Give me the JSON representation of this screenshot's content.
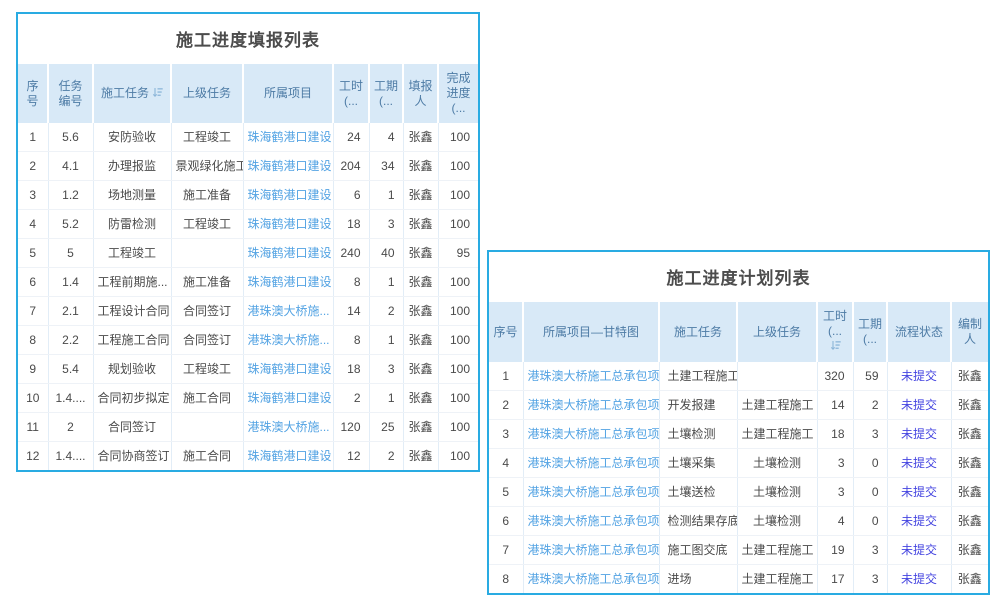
{
  "colors": {
    "accent_border": "#29abe2",
    "header_bg": "#d8e9f7",
    "header_text": "#4d7ba5",
    "project_link": "#53a3e3",
    "status_link": "#4444e0",
    "body_text": "#4a4a4a"
  },
  "report_table": {
    "title": "施工进度填报列表",
    "headers": {
      "seq": "序号",
      "task_no": "任务\n编号",
      "task": "施工任务",
      "parent_task": "上级任务",
      "project": "所属项目",
      "hours": "工时\n(...",
      "duration": "工期\n(...",
      "reporter": "填报\n人",
      "progress": "完成\n进度\n(..."
    },
    "rows": [
      [
        "1",
        "5.6",
        "安防验收",
        "工程竣工",
        "珠海鹤港口建设",
        "24",
        "4",
        "张鑫",
        "100"
      ],
      [
        "2",
        "4.1",
        "办理报监",
        "景观绿化施工",
        "珠海鹤港口建设",
        "204",
        "34",
        "张鑫",
        "100"
      ],
      [
        "3",
        "1.2",
        "场地测量",
        "施工准备",
        "珠海鹤港口建设",
        "6",
        "1",
        "张鑫",
        "100"
      ],
      [
        "4",
        "5.2",
        "防雷检测",
        "工程竣工",
        "珠海鹤港口建设",
        "18",
        "3",
        "张鑫",
        "100"
      ],
      [
        "5",
        "5",
        "工程竣工",
        "",
        "珠海鹤港口建设",
        "240",
        "40",
        "张鑫",
        "95"
      ],
      [
        "6",
        "1.4",
        "工程前期施...",
        "施工准备",
        "珠海鹤港口建设",
        "8",
        "1",
        "张鑫",
        "100"
      ],
      [
        "7",
        "2.1",
        "工程设计合同",
        "合同签订",
        "港珠澳大桥施...",
        "14",
        "2",
        "张鑫",
        "100"
      ],
      [
        "8",
        "2.2",
        "工程施工合同",
        "合同签订",
        "港珠澳大桥施...",
        "8",
        "1",
        "张鑫",
        "100"
      ],
      [
        "9",
        "5.4",
        "规划验收",
        "工程竣工",
        "珠海鹤港口建设",
        "18",
        "3",
        "张鑫",
        "100"
      ],
      [
        "10",
        "1.4....",
        "合同初步拟定",
        "施工合同",
        "珠海鹤港口建设",
        "2",
        "1",
        "张鑫",
        "100"
      ],
      [
        "11",
        "2",
        "合同签订",
        "",
        "港珠澳大桥施...",
        "120",
        "25",
        "张鑫",
        "100"
      ],
      [
        "12",
        "1.4....",
        "合同协商签订",
        "施工合同",
        "珠海鹤港口建设",
        "12",
        "2",
        "张鑫",
        "100"
      ]
    ]
  },
  "plan_table": {
    "title": "施工进度计划列表",
    "headers": {
      "seq": "序号",
      "project_gantt": "所属项目—甘特图",
      "task": "施工任务",
      "parent_task": "上级任务",
      "hours": "工时\n(...",
      "duration": "工期\n(...",
      "flow_status": "流程状态",
      "author": "编制\n人"
    },
    "rows": [
      [
        "1",
        "港珠澳大桥施工总承包项目",
        "土建工程施工",
        "",
        "320",
        "59",
        "未提交",
        "张鑫"
      ],
      [
        "2",
        "港珠澳大桥施工总承包项目",
        "开发报建",
        "土建工程施工",
        "14",
        "2",
        "未提交",
        "张鑫"
      ],
      [
        "3",
        "港珠澳大桥施工总承包项目",
        "土壤检测",
        "土建工程施工",
        "18",
        "3",
        "未提交",
        "张鑫"
      ],
      [
        "4",
        "港珠澳大桥施工总承包项目",
        "土壤采集",
        "土壤检测",
        "3",
        "0",
        "未提交",
        "张鑫"
      ],
      [
        "5",
        "港珠澳大桥施工总承包项目",
        "土壤送检",
        "土壤检测",
        "3",
        "0",
        "未提交",
        "张鑫"
      ],
      [
        "6",
        "港珠澳大桥施工总承包项目",
        "检测结果存底",
        "土壤检测",
        "4",
        "0",
        "未提交",
        "张鑫"
      ],
      [
        "7",
        "港珠澳大桥施工总承包项目",
        "施工图交底",
        "土建工程施工",
        "19",
        "3",
        "未提交",
        "张鑫"
      ],
      [
        "8",
        "港珠澳大桥施工总承包项目",
        "进场",
        "土建工程施工",
        "17",
        "3",
        "未提交",
        "张鑫"
      ]
    ]
  }
}
